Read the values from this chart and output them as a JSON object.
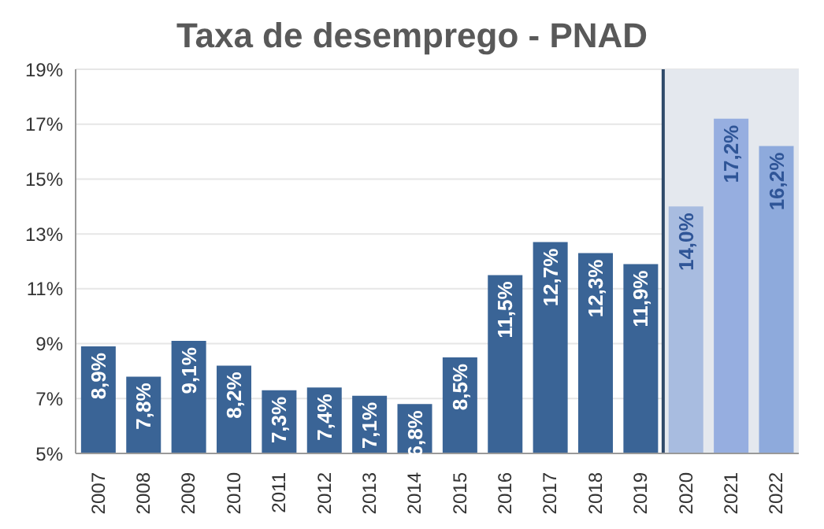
{
  "chart_data": {
    "type": "bar",
    "title": "Taxa de desemprego - PNAD",
    "categories": [
      "2007",
      "2008",
      "2009",
      "2010",
      "2011",
      "2012",
      "2013",
      "2014",
      "2015",
      "2016",
      "2017",
      "2018",
      "2019",
      "2020",
      "2021",
      "2022"
    ],
    "values": [
      8.9,
      7.8,
      9.1,
      8.2,
      7.3,
      7.4,
      7.1,
      6.8,
      8.5,
      11.5,
      12.7,
      12.3,
      11.9,
      14.0,
      17.2,
      16.2
    ],
    "value_labels": [
      "8,9%",
      "7,8%",
      "9,1%",
      "8,2%",
      "7,3%",
      "7,4%",
      "7,1%",
      "6,8%",
      "8,5%",
      "11,5%",
      "12,7%",
      "12,3%",
      "11,9%",
      "14,0%",
      "17,2%",
      "16,2%"
    ],
    "colors": [
      "#3a6496",
      "#3a6496",
      "#3a6496",
      "#3a6496",
      "#3a6496",
      "#3a6496",
      "#3a6496",
      "#3a6496",
      "#3a6496",
      "#3a6496",
      "#3a6496",
      "#3a6496",
      "#3a6496",
      "#a8bce0",
      "#96aee0",
      "#8eaadc"
    ],
    "ylim": [
      5,
      19
    ],
    "yticks": [
      {
        "value": 5,
        "label": "5%"
      },
      {
        "value": 7,
        "label": "7%"
      },
      {
        "value": 9,
        "label": "9%"
      },
      {
        "value": 11,
        "label": "11%"
      },
      {
        "value": 13,
        "label": "13%"
      },
      {
        "value": 15,
        "label": "15%"
      },
      {
        "value": 17,
        "label": "17%"
      },
      {
        "value": 19,
        "label": "19%"
      }
    ],
    "grid": "y",
    "bands": [
      {
        "axis": "x",
        "from": "2020",
        "to": "2022",
        "color": "#e4e8ee"
      }
    ],
    "ref_lines": [
      {
        "axis": "x",
        "value": "2020",
        "color": "#2f4a6a"
      }
    ]
  }
}
